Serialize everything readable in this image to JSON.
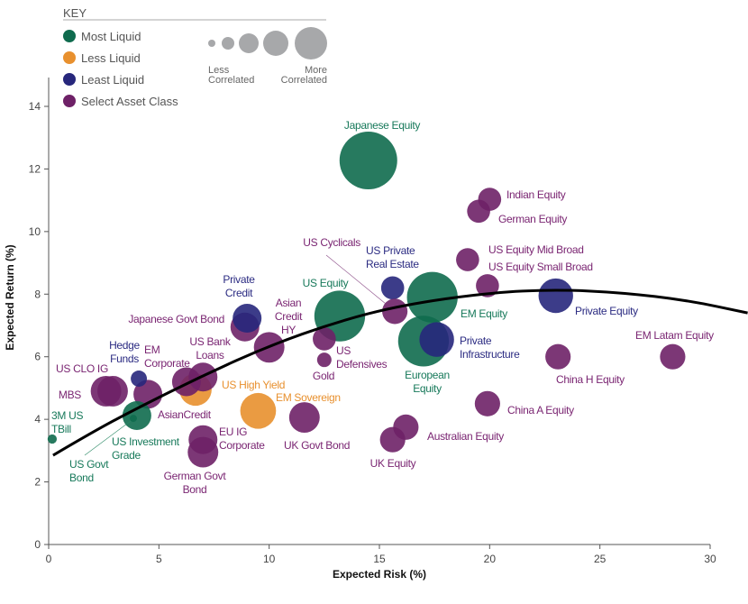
{
  "chart_data": {
    "type": "scatter",
    "subtype": "bubble",
    "xlabel": "Expected Risk (%)",
    "ylabel": "Expected Return (%)",
    "xlim": [
      0,
      30
    ],
    "ylim": [
      0,
      14
    ],
    "xticks": [
      0,
      5,
      10,
      15,
      20,
      25,
      30
    ],
    "yticks": [
      0,
      2,
      4,
      6,
      8,
      10,
      12,
      14
    ],
    "grid": false,
    "legend": {
      "title": "KEY",
      "position": "top-left",
      "categories": [
        {
          "name": "Most Liquid",
          "color": "#0f6b4e"
        },
        {
          "name": "Less Liquid",
          "color": "#e8902e"
        },
        {
          "name": "Least Liquid",
          "color": "#27277c"
        },
        {
          "name": "Select Asset Class",
          "color": "#6e2167"
        }
      ],
      "size_low_label": "Less Correlated",
      "size_high_label": "More Correlated",
      "size_color": "#a7a8aa"
    },
    "points": [
      {
        "name": "Japanese Equity",
        "category": "Most Liquid",
        "risk": 14.5,
        "return": 12.27,
        "size": 1.0
      },
      {
        "name": "Indian Equity",
        "category": "Select Asset Class",
        "risk": 20.0,
        "return": 11.03,
        "size": 0.4
      },
      {
        "name": "German Equity",
        "category": "Select Asset Class",
        "risk": 19.5,
        "return": 10.65,
        "size": 0.4
      },
      {
        "name": "US Equity Mid Broad",
        "category": "Select Asset Class",
        "risk": 19.0,
        "return": 9.1,
        "size": 0.4
      },
      {
        "name": "US Equity Small Broad",
        "category": "Select Asset Class",
        "risk": 19.9,
        "return": 8.27,
        "size": 0.4
      },
      {
        "name": "US Private Real Estate",
        "category": "Least Liquid",
        "risk": 15.6,
        "return": 8.2,
        "size": 0.4
      },
      {
        "name": "Private Equity",
        "category": "Least Liquid",
        "risk": 23.0,
        "return": 7.95,
        "size": 0.6
      },
      {
        "name": "EM Equity",
        "category": "Most Liquid",
        "risk": 17.4,
        "return": 7.9,
        "size": 0.88
      },
      {
        "name": "US Equity",
        "category": "Most Liquid",
        "risk": 13.2,
        "return": 7.3,
        "size": 0.88
      },
      {
        "name": "European Equity",
        "category": "Most Liquid",
        "risk": 17.0,
        "return": 6.5,
        "size": 0.88
      },
      {
        "name": "Private Infrastructure",
        "category": "Least Liquid",
        "risk": 17.6,
        "return": 6.55,
        "size": 0.6
      },
      {
        "name": "US Cyclicals",
        "category": "Select Asset Class",
        "risk": 15.7,
        "return": 7.45,
        "size": 0.44
      },
      {
        "name": "Japanese Govt Bond",
        "category": "Select Asset Class",
        "risk": 8.9,
        "return": 6.95,
        "size": 0.5
      },
      {
        "name": "Private Credit",
        "category": "Least Liquid",
        "risk": 9.0,
        "return": 7.23,
        "size": 0.5
      },
      {
        "name": "Asian Credit HY",
        "category": "Select Asset Class",
        "risk": 10.0,
        "return": 6.3,
        "size": 0.53
      },
      {
        "name": "US Defensives",
        "category": "Select Asset Class",
        "risk": 12.5,
        "return": 6.57,
        "size": 0.4
      },
      {
        "name": "Gold",
        "category": "Select Asset Class",
        "risk": 12.5,
        "return": 5.9,
        "size": 0.25
      },
      {
        "name": "EM Latam Equity",
        "category": "Select Asset Class",
        "risk": 28.3,
        "return": 6.0,
        "size": 0.44
      },
      {
        "name": "China H Equity",
        "category": "Select Asset Class",
        "risk": 23.1,
        "return": 6.0,
        "size": 0.44
      },
      {
        "name": "China A Equity",
        "category": "Select Asset Class",
        "risk": 19.9,
        "return": 4.5,
        "size": 0.44
      },
      {
        "name": "Australian Equity",
        "category": "Select Asset Class",
        "risk": 16.2,
        "return": 3.75,
        "size": 0.44
      },
      {
        "name": "UK Equity",
        "category": "Select Asset Class",
        "risk": 15.6,
        "return": 3.35,
        "size": 0.44
      },
      {
        "name": "UK Govt Bond",
        "category": "Select Asset Class",
        "risk": 11.6,
        "return": 4.06,
        "size": 0.53
      },
      {
        "name": "EM Sovereign",
        "category": "Less Liquid",
        "risk": 9.5,
        "return": 4.27,
        "size": 0.62
      },
      {
        "name": "US High Yield",
        "category": "Less Liquid",
        "risk": 6.66,
        "return": 4.95,
        "size": 0.56
      },
      {
        "name": "AsianCredit",
        "category": "Select Asset Class",
        "risk": 6.25,
        "return": 5.2,
        "size": 0.5
      },
      {
        "name": "US Bank Loans",
        "category": "Select Asset Class",
        "risk": 7.0,
        "return": 5.35,
        "size": 0.5
      },
      {
        "name": "EU IG Corporate",
        "category": "Select Asset Class",
        "risk": 7.0,
        "return": 3.35,
        "size": 0.5
      },
      {
        "name": "German Govt Bond",
        "category": "Select Asset Class",
        "risk": 7.0,
        "return": 2.95,
        "size": 0.53
      },
      {
        "name": "EM Corporate",
        "category": "Select Asset Class",
        "risk": 4.5,
        "return": 4.8,
        "size": 0.5
      },
      {
        "name": "Hedge Funds",
        "category": "Least Liquid",
        "risk": 4.09,
        "return": 5.3,
        "size": 0.28
      },
      {
        "name": "US CLO IG",
        "category": "Select Asset Class",
        "risk": 2.9,
        "return": 4.9,
        "size": 0.53
      },
      {
        "name": "MBS",
        "category": "Select Asset Class",
        "risk": 2.6,
        "return": 4.9,
        "size": 0.53
      },
      {
        "name": "US Investment Grade",
        "category": "Most Liquid",
        "risk": 4.0,
        "return": 4.12,
        "size": 0.5
      },
      {
        "name": "US Govt Bond",
        "category": "Most Liquid",
        "risk": 3.84,
        "return": 4.03,
        "size": 0.12
      },
      {
        "name": "3M US TBill",
        "category": "Most Liquid",
        "risk": 0.16,
        "return": 3.37,
        "size": 0.16
      }
    ],
    "trend_line": [
      [
        0.2,
        2.85
      ],
      [
        2,
        3.6
      ],
      [
        4,
        4.35
      ],
      [
        7,
        5.4
      ],
      [
        10,
        6.35
      ],
      [
        13,
        7.1
      ],
      [
        16,
        7.65
      ],
      [
        20,
        8.05
      ],
      [
        23,
        8.15
      ],
      [
        26,
        8.05
      ],
      [
        29,
        7.8
      ],
      [
        31.7,
        7.4
      ]
    ],
    "trend_color": "#000000"
  }
}
